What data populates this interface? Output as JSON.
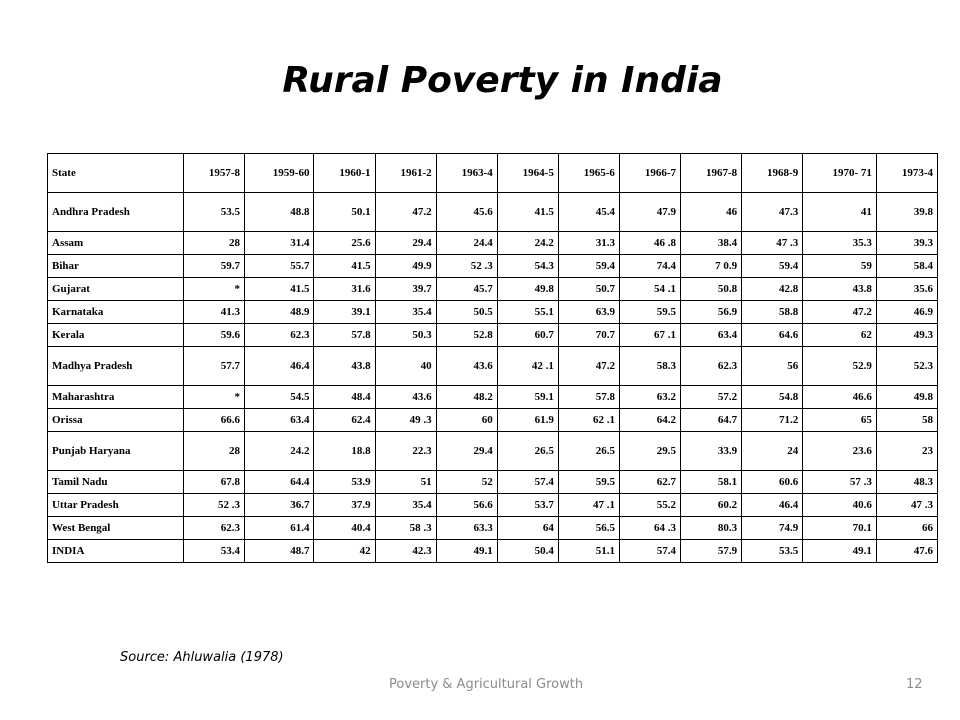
{
  "title": "Rural Poverty in India",
  "table": {
    "headers": [
      "State",
      "1957-8",
      "1959-60",
      "1960-1",
      "1961-2",
      "1963-4",
      "1964-5",
      "1965-6",
      "1966-7",
      "1967-8",
      "1968-9",
      "1970- 71",
      "1973-4"
    ],
    "rows": [
      [
        "Andhra Pradesh",
        "53.5",
        "48.8",
        "50.1",
        "47.2",
        "45.6",
        "41.5",
        "45.4",
        "47.9",
        "46",
        "47.3",
        "41",
        "39.8"
      ],
      [
        "Assam",
        "28",
        "31.4",
        "25.6",
        "29.4",
        "24.4",
        "24.2",
        "31.3",
        "46 .8",
        "38.4",
        "47 .3",
        "35.3",
        "39.3"
      ],
      [
        "Bihar",
        "59.7",
        "55.7",
        "41.5",
        "49.9",
        "52 .3",
        "54.3",
        "59.4",
        "74.4",
        "7 0.9",
        "59.4",
        "59",
        "58.4"
      ],
      [
        "Gujarat",
        "*",
        "41.5",
        "31.6",
        "39.7",
        "45.7",
        "49.8",
        "50.7",
        "54 .1",
        "50.8",
        "42.8",
        "43.8",
        "35.6"
      ],
      [
        "Karnataka",
        "41.3",
        "48.9",
        "39.1",
        "35.4",
        "50.5",
        "55.1",
        "63.9",
        "59.5",
        "56.9",
        "58.8",
        "47.2",
        "46.9"
      ],
      [
        "Kerala",
        "59.6",
        "62.3",
        "57.8",
        "50.3",
        "52.8",
        "60.7",
        "70.7",
        "67 .1",
        "63.4",
        "64.6",
        "62",
        "49.3"
      ],
      [
        "Madhya Pradesh",
        "57.7",
        "46.4",
        "43.8",
        "40",
        "43.6",
        "42 .1",
        "47.2",
        "58.3",
        "62.3",
        "56",
        "52.9",
        "52.3"
      ],
      [
        "Maharashtra",
        "*",
        "54.5",
        "48.4",
        "43.6",
        "48.2",
        "59.1",
        "57.8",
        "63.2",
        "57.2",
        "54.8",
        "46.6",
        "49.8"
      ],
      [
        "Orissa",
        "66.6",
        "63.4",
        "62.4",
        "49 .3",
        "60",
        "61.9",
        "62 .1",
        "64.2",
        "64.7",
        "71.2",
        "65",
        "58"
      ],
      [
        "Punjab Haryana",
        "28",
        "24.2",
        "18.8",
        "22.3",
        "29.4",
        "26.5",
        "26.5",
        "29.5",
        "33.9",
        "24",
        "23.6",
        "23"
      ],
      [
        "Tamil Nadu",
        "67.8",
        "64.4",
        "53.9",
        "51",
        "52",
        "57.4",
        "59.5",
        "62.7",
        "58.1",
        "60.6",
        "57 .3",
        "48.3"
      ],
      [
        "Uttar Pradesh",
        "52 .3",
        "36.7",
        "37.9",
        "35.4",
        "56.6",
        "53.7",
        "47 .1",
        "55.2",
        "60.2",
        "46.4",
        "40.6",
        "47 .3"
      ],
      [
        "West Bengal",
        "62.3",
        "61.4",
        "40.4",
        "58 .3",
        "63.3",
        "64",
        "56.5",
        "64 .3",
        "80.3",
        "74.9",
        "70.1",
        "66"
      ],
      [
        "INDIA",
        "53.4",
        "48.7",
        "42",
        "42.3",
        "49.1",
        "50.4",
        "51.1",
        "57.4",
        "57.9",
        "53.5",
        "49.1",
        "47.6"
      ]
    ]
  },
  "source": "Source: Ahluwalia (1978)",
  "footer": "Poverty & Agricultural Growth",
  "page_number": "12"
}
